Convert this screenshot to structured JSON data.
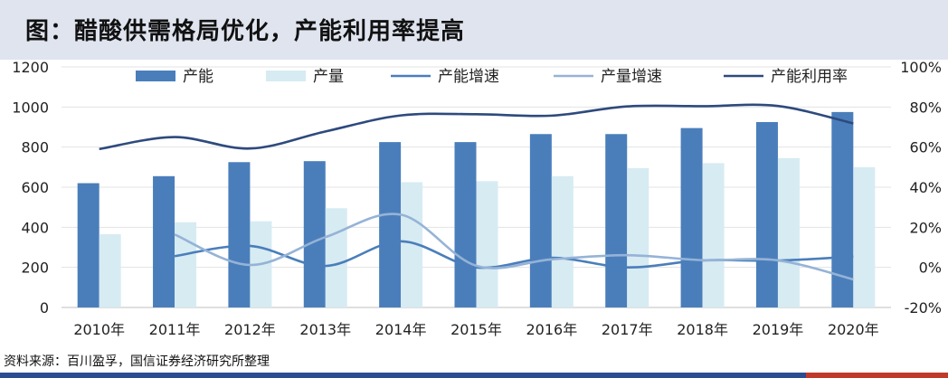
{
  "title": "图：醋酸供需格局优化，产能利用率提高",
  "source": "资料来源：百川盈孚，国信证券经济研究所整理",
  "chart_data": {
    "type": "bar",
    "categories": [
      "2010年",
      "2011年",
      "2012年",
      "2013年",
      "2014年",
      "2015年",
      "2016年",
      "2017年",
      "2018年",
      "2019年",
      "2020年"
    ],
    "series": [
      {
        "name": "产能",
        "type": "bar",
        "axis": "left",
        "color": "#4a7ebb",
        "values": [
          620,
          655,
          725,
          730,
          825,
          825,
          865,
          865,
          895,
          925,
          975
        ]
      },
      {
        "name": "产量",
        "type": "bar",
        "axis": "left",
        "color": "#d7ebf2",
        "values": [
          365,
          425,
          430,
          495,
          625,
          630,
          655,
          695,
          720,
          745,
          700
        ]
      },
      {
        "name": "产能增速",
        "type": "line",
        "axis": "right",
        "color": "#4a7ebb",
        "values": [
          null,
          5.6,
          10.7,
          0.7,
          13.0,
          0.0,
          4.8,
          0.0,
          3.5,
          3.4,
          5.4
        ]
      },
      {
        "name": "产量增速",
        "type": "line",
        "axis": "right",
        "color": "#95b3d7",
        "values": [
          null,
          16.4,
          1.2,
          15.1,
          26.3,
          0.8,
          4.0,
          6.1,
          3.6,
          3.5,
          -6.0
        ]
      },
      {
        "name": "产能利用率",
        "type": "line",
        "axis": "right",
        "color": "#2e4a7d",
        "values": [
          59.0,
          65.0,
          59.3,
          67.8,
          75.8,
          76.4,
          75.7,
          80.3,
          80.4,
          80.5,
          71.8
        ]
      }
    ],
    "ylim_left": [
      0,
      1200
    ],
    "yticks_left": [
      "0",
      "200",
      "400",
      "600",
      "800",
      "1000",
      "1200"
    ],
    "ylim_right": [
      -20,
      100
    ],
    "yticks_right": [
      "-20%",
      "0%",
      "20%",
      "40%",
      "60%",
      "80%",
      "100%"
    ],
    "grid": true,
    "legend_position": "top"
  }
}
